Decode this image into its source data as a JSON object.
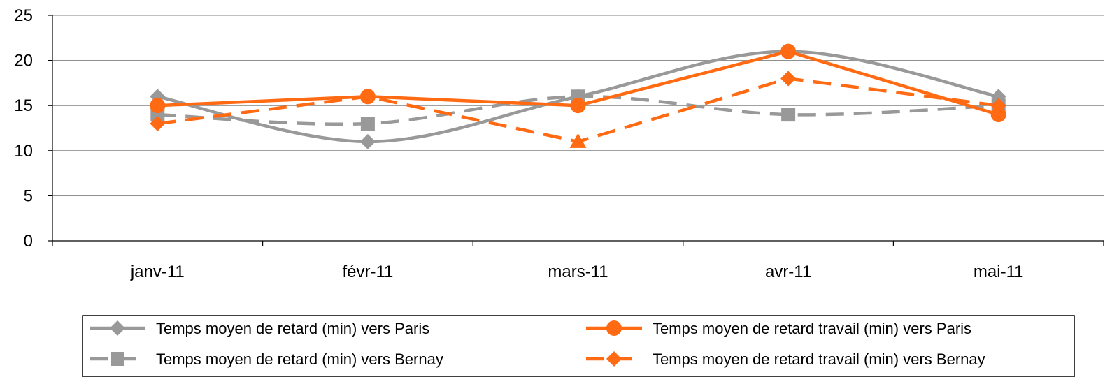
{
  "chart_data": {
    "type": "line",
    "title": "",
    "xlabel": "",
    "ylabel": "",
    "categories": [
      "janv-11",
      "févr-11",
      "mars-11",
      "avr-11",
      "mai-11"
    ],
    "ylim": [
      0,
      25
    ],
    "yticks": [
      0,
      5,
      10,
      15,
      20,
      25
    ],
    "grid": true,
    "legend_position": "bottom",
    "series": [
      {
        "name": "Temps moyen de retard (min) vers Paris",
        "values": [
          16,
          11,
          16,
          21,
          16
        ],
        "color": "#999999",
        "marker": "diamond",
        "dash": "solid",
        "smooth": true
      },
      {
        "name": "Temps moyen de retard travail (min) vers Paris",
        "values": [
          15,
          16,
          15,
          21,
          14
        ],
        "color": "#ff6a13",
        "marker": "circle",
        "dash": "solid",
        "smooth": false
      },
      {
        "name": "Temps moyen de retard (min) vers Bernay",
        "values": [
          14,
          13,
          16,
          14,
          15
        ],
        "color": "#999999",
        "marker": "square",
        "dash": "dashed",
        "smooth": true
      },
      {
        "name": "Temps moyen de retard travail (min) vers Bernay",
        "values": [
          13,
          16,
          11,
          18,
          15
        ],
        "color": "#ff6a13",
        "marker": "mixed",
        "markers": [
          "diamond",
          "diamond",
          "triangle",
          "diamond",
          "diamond"
        ],
        "dash": "dashed",
        "smooth": false
      }
    ]
  }
}
